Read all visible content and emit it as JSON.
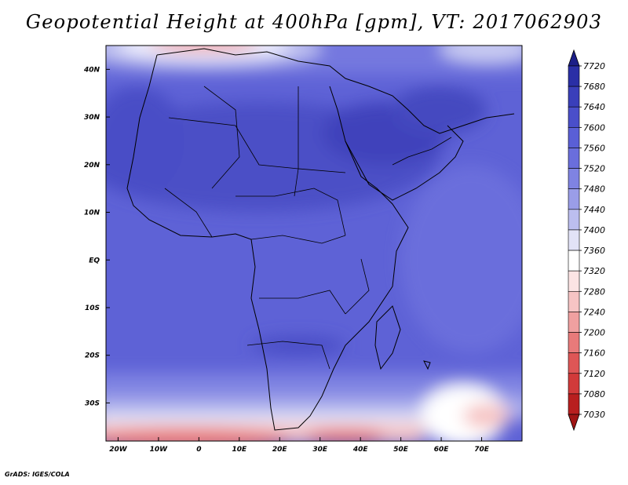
{
  "title": "Geopotential Height at 400hPa [gpm], VT: 2017062903",
  "credit": "GrADS: IGES/COLA",
  "map": {
    "projection": "lat-lon",
    "lon_range": [
      -23,
      80
    ],
    "lat_range": [
      -38,
      45
    ],
    "region": "Africa",
    "x_ticks": [
      "20W",
      "10W",
      "0",
      "10E",
      "20E",
      "30E",
      "40E",
      "50E",
      "60E",
      "70E"
    ],
    "y_ticks": [
      "40N",
      "30N",
      "20N",
      "10N",
      "EQ",
      "10S",
      "20S",
      "30S"
    ],
    "features": [
      "coastlines",
      "country borders",
      "filled contours"
    ]
  },
  "colorbar": {
    "orientation": "vertical",
    "position": "right",
    "levels": [
      "7720",
      "7680",
      "7640",
      "7600",
      "7560",
      "7520",
      "7480",
      "7440",
      "7400",
      "7360",
      "7320",
      "7280",
      "7240",
      "7200",
      "7160",
      "7120",
      "7080",
      "7030"
    ],
    "colors": [
      "#1c1f88",
      "#2a2fa6",
      "#3a3fba",
      "#4a4fca",
      "#5a5fd6",
      "#6a6edc",
      "#7f83e2",
      "#9a9de8",
      "#bcbeef",
      "#e2e3f7",
      "#ffffff",
      "#fce4e4",
      "#f6c4c4",
      "#f0a0a0",
      "#e87a7a",
      "#de5656",
      "#d13a3a",
      "#b81f1f",
      "#a01515"
    ]
  },
  "chart_data": {
    "type": "heatmap",
    "variable": "Geopotential Height at 400hPa",
    "units": "gpm",
    "valid_time": "2017062903",
    "x_ticks": [
      "20W",
      "10W",
      "0",
      "10E",
      "20E",
      "30E",
      "40E",
      "50E",
      "60E",
      "70E"
    ],
    "y_ticks": [
      "40N",
      "30N",
      "20N",
      "10N",
      "EQ",
      "10S",
      "20S",
      "30S"
    ],
    "levels": [
      7720,
      7680,
      7640,
      7600,
      7560,
      7520,
      7480,
      7440,
      7400,
      7360,
      7320,
      7280,
      7240,
      7200,
      7160,
      7120,
      7080,
      7030
    ],
    "regions": [
      {
        "area": "Mediterranean / southern Europe (~40-45N, 10W-20E)",
        "value_range": [
          7280,
          7400
        ]
      },
      {
        "area": "Arabian Peninsula / Iran (~20-35N, 35-60E)",
        "value_range": [
          7640,
          7680
        ]
      },
      {
        "area": "Sahara (~15-30N)",
        "value_range": [
          7600,
          7640
        ]
      },
      {
        "area": "Equatorial Africa (~10N-10S)",
        "value_range": [
          7560,
          7600
        ]
      },
      {
        "area": "Southern Africa (~20-30S)",
        "value_range": [
          7480,
          7560
        ]
      },
      {
        "area": "Southern Ocean (~33-38S, 10W-40E)",
        "value_range": [
          7120,
          7360
        ]
      }
    ]
  }
}
